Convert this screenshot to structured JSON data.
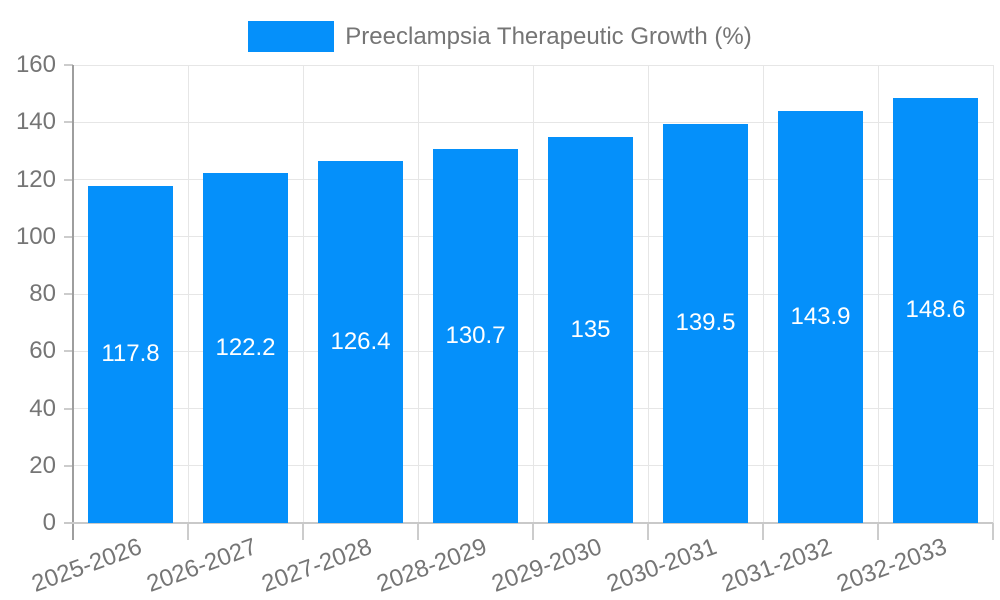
{
  "legend": {
    "label": "Preeclampsia Therapeutic Growth (%)"
  },
  "colors": {
    "bar": "#0590FA",
    "text_muted": "#757575",
    "grid": "#e6e6e6",
    "axis_y": "#9e9e9e",
    "axis_x": "#c9c9c9",
    "tick": "#cccccc",
    "bar_label": "#ffffff",
    "background": "#ffffff"
  },
  "chart_data": {
    "type": "bar",
    "title": "Preeclampsia Therapeutic Growth (%)",
    "series_name": "Preeclampsia Therapeutic Growth (%)",
    "categories": [
      "2025-2026",
      "2026-2027",
      "2027-2028",
      "2028-2029",
      "2029-2030",
      "2030-2031",
      "2031-2032",
      "2032-2033"
    ],
    "values": [
      117.8,
      122.2,
      126.4,
      130.7,
      135,
      139.5,
      143.9,
      148.6
    ],
    "value_labels": [
      "117.8",
      "122.2",
      "126.4",
      "130.7",
      "135",
      "139.5",
      "143.9",
      "148.6"
    ],
    "xlabel": "",
    "ylabel": "",
    "ylim": [
      0,
      160
    ],
    "yticks": [
      0,
      20,
      40,
      60,
      80,
      100,
      120,
      140,
      160
    ],
    "grid": true,
    "legend_position": "top",
    "x_label_rotation_deg": -20
  }
}
